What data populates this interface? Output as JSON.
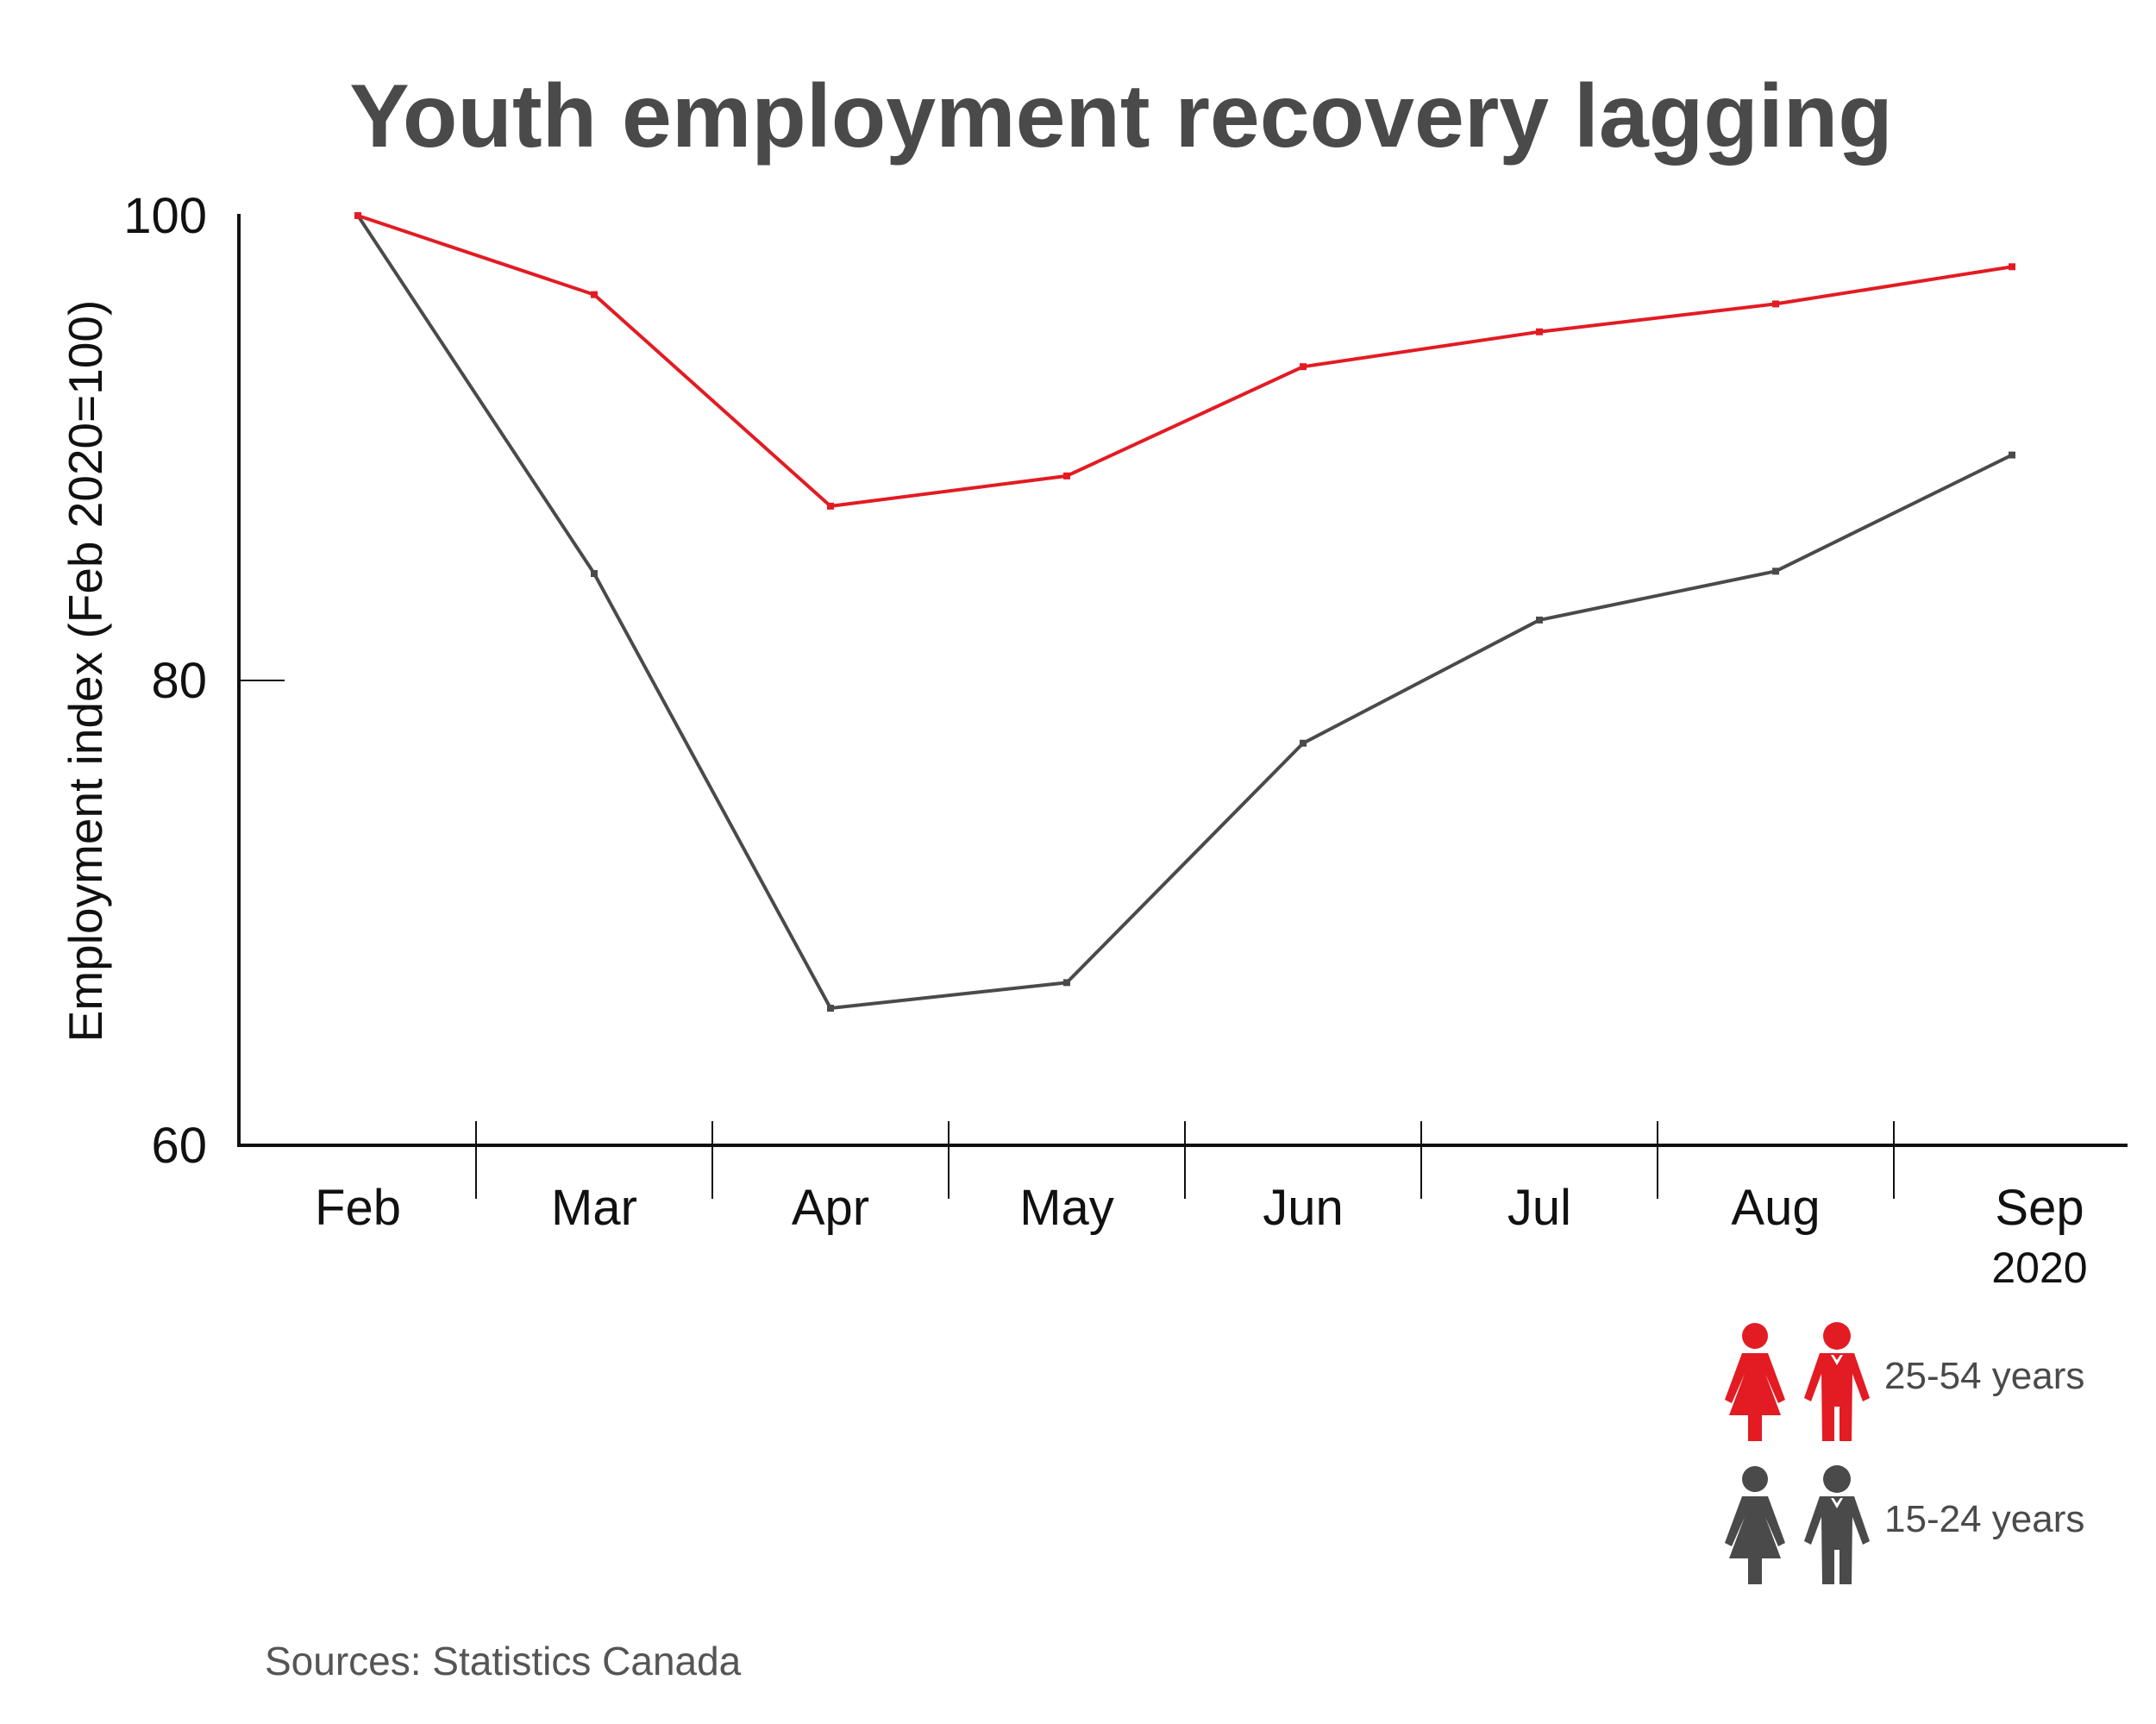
{
  "chart_data": {
    "type": "line",
    "title": "Youth employment recovery lagging",
    "ylabel": "Employment index (Feb 2020=100)",
    "xlabel": "",
    "year_label": "2020",
    "categories": [
      "Feb",
      "Mar",
      "Apr",
      "May",
      "Jun",
      "Jul",
      "Aug",
      "Sep"
    ],
    "ylim": [
      60,
      100
    ],
    "yticks": [
      60,
      80,
      100
    ],
    "grid": false,
    "legend_position": "bottom-right",
    "series": [
      {
        "name": "25-54 years",
        "color": "#e31b23",
        "values": [
          100,
          96.6,
          87.5,
          88.8,
          93.5,
          95.0,
          96.2,
          97.8
        ]
      },
      {
        "name": "15-24 years",
        "color": "#4a4a4a",
        "values": [
          100,
          84.6,
          65.9,
          67.0,
          77.3,
          82.6,
          84.7,
          89.7
        ]
      }
    ],
    "source": "Sources: Statistics Canada"
  },
  "legend_icons": {
    "25-54 years": [
      "woman-icon",
      "man-icon"
    ],
    "15-24 years": [
      "woman-icon",
      "man-icon"
    ]
  }
}
